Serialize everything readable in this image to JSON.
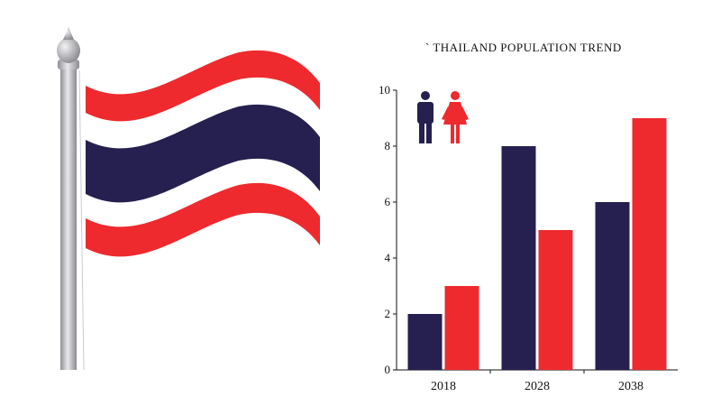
{
  "chart_data": {
    "type": "bar",
    "title": "` THAILAND POPULATION TREND",
    "categories": [
      "2018",
      "2028",
      "2038"
    ],
    "series": [
      {
        "values": [
          2,
          8,
          6
        ],
        "color": "#25204f"
      },
      {
        "values": [
          3,
          5,
          9
        ],
        "color": "#ee2a2e"
      }
    ],
    "ylim": [
      0,
      10
    ],
    "yticks": [
      0,
      2,
      4,
      6,
      8,
      10
    ],
    "grid": false,
    "legend": "top-left icons: man (navy), woman (red)"
  },
  "colors": {
    "navy": "#25204f",
    "red": "#ee2a2e",
    "pole": "#b8b8bc"
  },
  "icons": {
    "flag": "thailand-flag-icon",
    "male": "man-icon",
    "female": "woman-icon"
  }
}
